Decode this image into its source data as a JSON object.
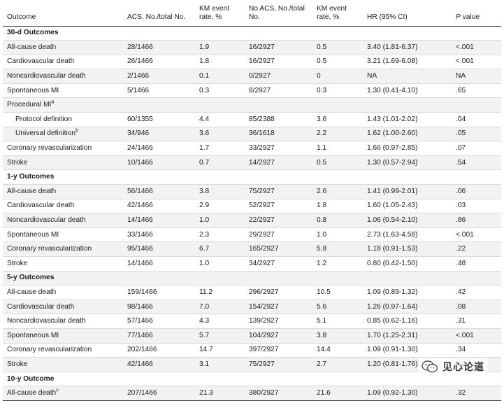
{
  "headers": {
    "outcome": "Outcome",
    "acs": "ACS, No./total No.",
    "km1": "KM event rate, %",
    "noacs": "No ACS, No./total No.",
    "km2": "KM event rate, %",
    "hr": "HR (95% CI)",
    "p_italic": "P",
    "p_rest": " value"
  },
  "rows": [
    {
      "kind": "section",
      "label": "30-d Outcomes"
    },
    {
      "kind": "data",
      "label": "All-cause death",
      "acs": "28/1466",
      "km1": "1.9",
      "noacs": "16/2927",
      "km2": "0.5",
      "hr": "3.40 (1.81-6.37)",
      "p": "<.001"
    },
    {
      "kind": "data",
      "label": "Cardiovascular death",
      "acs": "26/1466",
      "km1": "1.8",
      "noacs": "16/2927",
      "km2": "0.5",
      "hr": "3.21 (1.69-6.08)",
      "p": "<.001"
    },
    {
      "kind": "data",
      "label": "Noncardiovascular death",
      "acs": "2/1466",
      "km1": "0.1",
      "noacs": "0/2927",
      "km2": "0",
      "hr": "NA",
      "p": "NA"
    },
    {
      "kind": "data",
      "label": "Spontaneous MI",
      "acs": "5/1466",
      "km1": "0.3",
      "noacs": "8/2927",
      "km2": "0.3",
      "hr": "1.30 (0.41-4.10)",
      "p": ".65"
    },
    {
      "kind": "data",
      "label": "Procedural MI",
      "sup": "a",
      "acs": "",
      "km1": "",
      "noacs": "",
      "km2": "",
      "hr": "",
      "p": ""
    },
    {
      "kind": "sub",
      "label": "Protocol definition",
      "acs": "60/1355",
      "km1": "4.4",
      "noacs": "85/2388",
      "km2": "3.6",
      "hr": "1.43 (1.01-2.02)",
      "p": ".04"
    },
    {
      "kind": "sub",
      "label": "Universal definition",
      "sup": "b",
      "acs": "34/946",
      "km1": "3.6",
      "noacs": "36/1618",
      "km2": "2.2",
      "hr": "1.62 (1.00-2.60)",
      "p": ".05"
    },
    {
      "kind": "data",
      "label": "Coronary revascularization",
      "acs": "24/1466",
      "km1": "1.7",
      "noacs": "33/2927",
      "km2": "1.1",
      "hr": "1.66 (0.97-2.85)",
      "p": ".07"
    },
    {
      "kind": "data",
      "label": "Stroke",
      "acs": "10/1466",
      "km1": "0.7",
      "noacs": "14/2927",
      "km2": "0.5",
      "hr": "1.30 (0.57-2.94)",
      "p": ".54"
    },
    {
      "kind": "section",
      "label": "1-y Outcomes"
    },
    {
      "kind": "data",
      "label": "All-cause death",
      "acs": "56/1466",
      "km1": "3.8",
      "noacs": "75/2927",
      "km2": "2.6",
      "hr": "1.41 (0.99-2.01)",
      "p": ".06"
    },
    {
      "kind": "data",
      "label": "Cardiovascular death",
      "acs": "42/1466",
      "km1": "2.9",
      "noacs": "52/2927",
      "km2": "1.8",
      "hr": "1.60 (1.05-2.43)",
      "p": ".03"
    },
    {
      "kind": "data",
      "label": "Noncardiovascular death",
      "acs": "14/1466",
      "km1": "1.0",
      "noacs": "22/2927",
      "km2": "0.8",
      "hr": "1.06 (0.54-2.10)",
      "p": ".86"
    },
    {
      "kind": "data",
      "label": "Spontaneous MI",
      "acs": "33/1466",
      "km1": "2.3",
      "noacs": "29/2927",
      "km2": "1.0",
      "hr": "2.73 (1.63-4.58)",
      "p": "<.001"
    },
    {
      "kind": "data",
      "label": "Coronary revascularization",
      "acs": "95/1466",
      "km1": "6.7",
      "noacs": "165/2927",
      "km2": "5.8",
      "hr": "1.18 (0.91-1.53)",
      "p": ".22"
    },
    {
      "kind": "data",
      "label": "Stroke",
      "acs": "14/1466",
      "km1": "1.0",
      "noacs": "34/2927",
      "km2": "1.2",
      "hr": "0.80 (0.42-1.50)",
      "p": ".48"
    },
    {
      "kind": "section",
      "label": "5-y Outcomes"
    },
    {
      "kind": "data",
      "label": "All-cause death",
      "acs": "159/1466",
      "km1": "11.2",
      "noacs": "296/2927",
      "km2": "10.5",
      "hr": "1.09 (0.89-1.32)",
      "p": ".42"
    },
    {
      "kind": "data",
      "label": "Cardiovascular death",
      "acs": "98/1466",
      "km1": "7.0",
      "noacs": "154/2927",
      "km2": "5.6",
      "hr": "1.26 (0.97-1.64)",
      "p": ".08"
    },
    {
      "kind": "data",
      "label": "Noncardiovascular death",
      "acs": "57/1466",
      "km1": "4.3",
      "noacs": "139/2927",
      "km2": "5.1",
      "hr": "0.85 (0.62-1.16)",
      "p": ".31"
    },
    {
      "kind": "data",
      "label": "Spontaneous MI",
      "acs": "77/1466",
      "km1": "5.7",
      "noacs": "104/2927",
      "km2": "3.8",
      "hr": "1.70 (1.25-2.31)",
      "p": "<.001"
    },
    {
      "kind": "data",
      "label": "Coronary revascularization",
      "acs": "202/1466",
      "km1": "14.7",
      "noacs": "397/2927",
      "km2": "14.4",
      "hr": "1.09 (0.91-1.30)",
      "p": ".34"
    },
    {
      "kind": "data",
      "label": "Stroke",
      "acs": "42/1466",
      "km1": "3.1",
      "noacs": "75/2927",
      "km2": "2.7",
      "hr": "1.20 (0.81-1.76)",
      "p": ".36"
    },
    {
      "kind": "section",
      "label": "10-y Outcome"
    },
    {
      "kind": "data",
      "label": "All-cause death",
      "sup": "c",
      "acs": "207/1466",
      "km1": "21.3",
      "noacs": "380/2927",
      "km2": "21.6",
      "hr": "1.09 (0.92-1.30)",
      "p": ".32"
    }
  ],
  "watermark": {
    "text": "见心论道",
    "icon": "wechat-logo-icon"
  }
}
